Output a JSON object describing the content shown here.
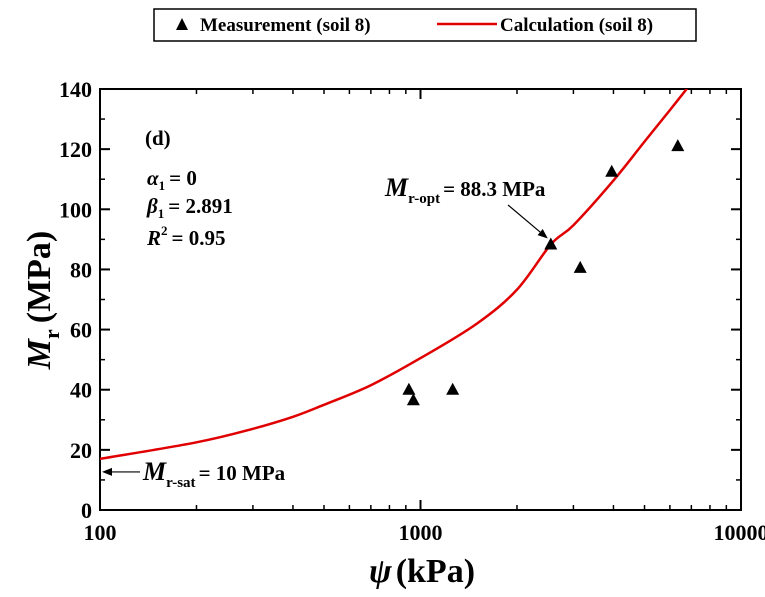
{
  "chart_data": {
    "type": "scatter",
    "x_scale": "log",
    "xlim": [
      100,
      10000
    ],
    "ylim": [
      0,
      140
    ],
    "x_ticks": [
      100,
      1000,
      10000
    ],
    "x_tick_labels": [
      "100",
      "1000",
      "10000"
    ],
    "y_ticks": [
      0,
      20,
      40,
      60,
      80,
      100,
      120,
      140
    ],
    "y_tick_labels": [
      "0",
      "20",
      "40",
      "60",
      "80",
      "100",
      "120",
      "140"
    ],
    "xlabel": {
      "symbol": "ψ",
      "unit": "(kPa)"
    },
    "ylabel": {
      "symbol": "M",
      "subscript": "r",
      "unit": "(MPa)"
    },
    "legend_position": "top",
    "series": [
      {
        "name": "Measurement (soil 8)",
        "kind": "points",
        "marker": "triangle",
        "color": "#000000",
        "points": [
          [
            920,
            40
          ],
          [
            950,
            36.5
          ],
          [
            1260,
            40
          ],
          [
            2550,
            88.3
          ],
          [
            3150,
            80.5
          ],
          [
            3950,
            112.5
          ],
          [
            6350,
            121
          ]
        ]
      },
      {
        "name": "Calculation (soil 8)",
        "kind": "line",
        "color": "#e00000",
        "points": [
          [
            100,
            17
          ],
          [
            200,
            22.5
          ],
          [
            300,
            27
          ],
          [
            400,
            31
          ],
          [
            500,
            35
          ],
          [
            700,
            41.5
          ],
          [
            1000,
            50.5
          ],
          [
            1500,
            62
          ],
          [
            2000,
            73.3
          ],
          [
            2550,
            88.3
          ],
          [
            3000,
            94.7
          ],
          [
            4000,
            109.6
          ],
          [
            5000,
            122.5
          ],
          [
            6000,
            133
          ],
          [
            7000,
            142
          ]
        ]
      }
    ],
    "annotations": {
      "panel_label": "(d)",
      "alpha": {
        "symbol": "α",
        "sub": "1",
        "value": "= 0"
      },
      "beta": {
        "symbol": "β",
        "sub": "1",
        "value": "= 2.891"
      },
      "r2": {
        "symbol": "R",
        "sup": "2",
        "value": "= 0.95"
      },
      "mr_opt": {
        "symbol": "M",
        "sub": "r-opt",
        "value": "= 88.3 MPa",
        "target": [
          2550,
          88.3
        ]
      },
      "mr_sat": {
        "symbol": "M",
        "sub": "r-sat",
        "value": "= 10 MPa",
        "target": [
          100,
          12
        ]
      }
    }
  }
}
